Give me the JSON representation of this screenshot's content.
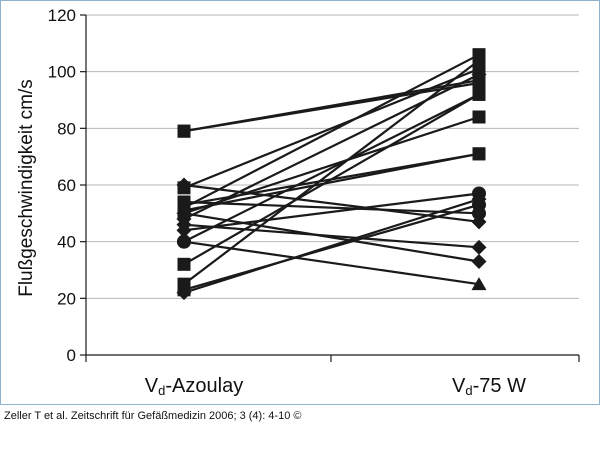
{
  "chart_data": {
    "type": "line",
    "ylabel": "Flußgeschwindigkeit cm/s",
    "ylim": [
      0,
      120
    ],
    "yticks": [
      0,
      20,
      40,
      60,
      80,
      100,
      120
    ],
    "grid": true,
    "categories": [
      {
        "main": "V",
        "sub": "d",
        "rest": "-Azoulay"
      },
      {
        "main": "V",
        "sub": "d",
        "rest": "-75 W"
      }
    ],
    "pairs": [
      {
        "y0": 79,
        "y1": 97,
        "m0": "square",
        "m1": "square"
      },
      {
        "y0": 79,
        "y1": 96,
        "m0": "square",
        "m1": "square"
      },
      {
        "y0": 60,
        "y1": 47,
        "m0": "diamond",
        "m1": "diamond"
      },
      {
        "y0": 59,
        "y1": 101,
        "m0": "square",
        "m1": "square"
      },
      {
        "y0": 54,
        "y1": 50,
        "m0": "square",
        "m1": "circle"
      },
      {
        "y0": 53,
        "y1": 71,
        "m0": "square",
        "m1": "square"
      },
      {
        "y0": 52,
        "y1": 106,
        "m0": "square",
        "m1": "square"
      },
      {
        "y0": 51,
        "y1": 71,
        "m0": "square",
        "m1": "square"
      },
      {
        "y0": 50,
        "y1": 33,
        "m0": "diamond",
        "m1": "diamond"
      },
      {
        "y0": 50,
        "y1": 84,
        "m0": "square",
        "m1": "square"
      },
      {
        "y0": 48,
        "y1": 99,
        "m0": "diamond",
        "m1": "diamond"
      },
      {
        "y0": 46,
        "y1": 38,
        "m0": "diamond",
        "m1": "diamond"
      },
      {
        "y0": 44,
        "y1": 57,
        "m0": "diamond",
        "m1": "circle"
      },
      {
        "y0": 40,
        "y1": 25,
        "m0": "circle",
        "m1": "triangle"
      },
      {
        "y0": 40,
        "y1": 92,
        "m0": "circle",
        "m1": "square"
      },
      {
        "y0": 32,
        "y1": 92,
        "m0": "square",
        "m1": "square"
      },
      {
        "y0": 25,
        "y1": 104,
        "m0": "square",
        "m1": "square"
      },
      {
        "y0": 23,
        "y1": 53,
        "m0": "square",
        "m1": "circle"
      },
      {
        "y0": 22,
        "y1": 55,
        "m0": "diamond",
        "m1": "diamond"
      }
    ]
  },
  "caption": "Zeller T et al. Zeitschrift für Gefäßmedizin 2006; 3 (4): 4-10 ©",
  "colors": {
    "line": "#1a1a1a",
    "grid": "#b5b5b5",
    "frame": "#8fb3cc"
  }
}
